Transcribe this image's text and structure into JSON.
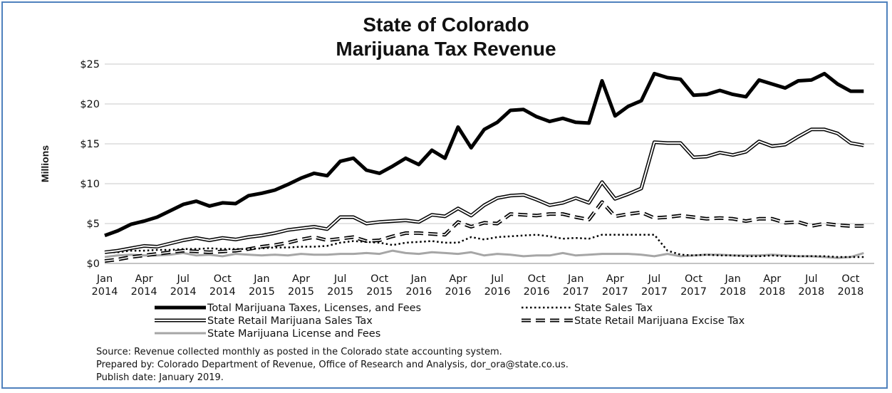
{
  "chart_data": {
    "type": "line",
    "title": "State of Colorado",
    "subtitle": "Marijuana Tax Revenue",
    "ylabel": "Millions",
    "xlabel": "",
    "ylim": [
      0,
      25
    ],
    "yticks": [
      0,
      5,
      10,
      15,
      20,
      25
    ],
    "ytick_labels": [
      "$0",
      "$5",
      "$10",
      "$15",
      "$20",
      "$25"
    ],
    "xticks": [
      {
        "month": 0,
        "line1": "Jan",
        "line2": "2014"
      },
      {
        "month": 3,
        "line1": "Apr",
        "line2": "2014"
      },
      {
        "month": 6,
        "line1": "Jul",
        "line2": "2014"
      },
      {
        "month": 9,
        "line1": "Oct",
        "line2": "2014"
      },
      {
        "month": 12,
        "line1": "Jan",
        "line2": "2015"
      },
      {
        "month": 15,
        "line1": "Apr",
        "line2": "2015"
      },
      {
        "month": 18,
        "line1": "Jul",
        "line2": "2015"
      },
      {
        "month": 21,
        "line1": "Oct",
        "line2": "2015"
      },
      {
        "month": 24,
        "line1": "Jan",
        "line2": "2016"
      },
      {
        "month": 27,
        "line1": "Apr",
        "line2": "2016"
      },
      {
        "month": 30,
        "line1": "Jul",
        "line2": "2016"
      },
      {
        "month": 33,
        "line1": "Oct",
        "line2": "2016"
      },
      {
        "month": 36,
        "line1": "Jan",
        "line2": "2017"
      },
      {
        "month": 39,
        "line1": "Apr",
        "line2": "2017"
      },
      {
        "month": 42,
        "line1": "Jul",
        "line2": "2017"
      },
      {
        "month": 45,
        "line1": "Oct",
        "line2": "2017"
      },
      {
        "month": 48,
        "line1": "Jan",
        "line2": "2018"
      },
      {
        "month": 51,
        "line1": "Apr",
        "line2": "2018"
      },
      {
        "month": 54,
        "line1": "Jul",
        "line2": "2018"
      },
      {
        "month": 57,
        "line1": "Oct",
        "line2": "2018"
      }
    ],
    "grid": true,
    "legend_position": "bottom",
    "series": [
      {
        "name": "Total Marijuana Taxes, Licenses, and Fees",
        "style": "thick",
        "color": "#000000",
        "values": [
          3.5,
          4.1,
          4.9,
          5.3,
          5.8,
          6.6,
          7.4,
          7.8,
          7.2,
          7.6,
          7.5,
          8.5,
          8.8,
          9.2,
          9.9,
          10.7,
          11.3,
          11.0,
          12.8,
          13.2,
          11.7,
          11.3,
          12.2,
          13.2,
          12.4,
          14.2,
          13.2,
          17.1,
          14.5,
          16.8,
          17.7,
          19.2,
          19.3,
          18.4,
          17.8,
          18.2,
          17.7,
          17.6,
          22.9,
          18.5,
          19.7,
          20.4,
          23.8,
          23.3,
          23.1,
          21.1,
          21.2,
          21.7,
          21.2,
          20.9,
          23.0,
          22.5,
          22.0,
          22.9,
          23.0,
          23.8,
          22.5,
          21.6,
          21.6
        ]
      },
      {
        "name": "State Sales Tax",
        "style": "dotted",
        "color": "#000000",
        "values": [
          1.4,
          1.4,
          1.6,
          1.6,
          1.7,
          1.7,
          1.8,
          1.8,
          1.9,
          1.8,
          1.8,
          1.8,
          1.9,
          2.0,
          2.0,
          2.1,
          2.1,
          2.2,
          2.6,
          2.8,
          2.7,
          2.6,
          2.3,
          2.6,
          2.7,
          2.8,
          2.6,
          2.6,
          3.3,
          3.0,
          3.3,
          3.4,
          3.5,
          3.6,
          3.4,
          3.1,
          3.2,
          3.1,
          3.6,
          3.6,
          3.6,
          3.6,
          3.6,
          1.6,
          1.1,
          1.0,
          1.1,
          1.0,
          1.0,
          0.9,
          0.9,
          1.0,
          0.9,
          0.9,
          0.9,
          0.9,
          0.8,
          0.8,
          0.8
        ]
      },
      {
        "name": "State Retail Marijuana Sales Tax",
        "style": "double",
        "color": "#000000",
        "values": [
          1.4,
          1.6,
          1.9,
          2.2,
          2.1,
          2.5,
          2.9,
          3.2,
          2.9,
          3.2,
          3.0,
          3.3,
          3.5,
          3.8,
          4.2,
          4.4,
          4.6,
          4.3,
          5.8,
          5.8,
          5.0,
          5.2,
          5.3,
          5.4,
          5.2,
          6.1,
          5.9,
          6.9,
          6.0,
          7.3,
          8.2,
          8.5,
          8.6,
          8.0,
          7.3,
          7.6,
          8.2,
          7.6,
          10.2,
          8.1,
          8.7,
          9.4,
          15.2,
          15.1,
          15.1,
          13.3,
          13.4,
          13.9,
          13.6,
          14.0,
          15.3,
          14.7,
          14.9,
          15.9,
          16.8,
          16.8,
          16.3,
          15.1,
          14.8
        ]
      },
      {
        "name": "State Retail Marijuana Excise Tax",
        "style": "dashed",
        "color": "#000000",
        "values": [
          0.3,
          0.5,
          0.8,
          1.0,
          1.2,
          1.4,
          1.6,
          1.5,
          1.4,
          1.5,
          1.6,
          1.8,
          2.1,
          2.3,
          2.6,
          3.0,
          3.3,
          2.9,
          3.1,
          3.3,
          2.8,
          2.9,
          3.4,
          3.8,
          3.8,
          3.7,
          3.6,
          5.2,
          4.6,
          5.1,
          5.0,
          6.2,
          6.1,
          6.0,
          6.2,
          6.2,
          5.8,
          5.5,
          7.7,
          5.9,
          6.2,
          6.4,
          5.7,
          5.8,
          6.0,
          5.8,
          5.6,
          5.7,
          5.6,
          5.3,
          5.6,
          5.6,
          5.1,
          5.2,
          4.7,
          5.0,
          4.8,
          4.7,
          4.7
        ]
      },
      {
        "name": "State Marijuana License and Fees",
        "style": "gray",
        "color": "#a6a6a6",
        "values": [
          0.8,
          1.0,
          1.1,
          1.0,
          1.0,
          1.1,
          1.3,
          1.0,
          1.1,
          0.9,
          1.2,
          1.1,
          1.0,
          1.1,
          1.0,
          1.2,
          1.1,
          1.1,
          1.2,
          1.2,
          1.3,
          1.2,
          1.6,
          1.3,
          1.2,
          1.4,
          1.3,
          1.2,
          1.4,
          1.0,
          1.2,
          1.1,
          0.9,
          1.0,
          1.0,
          1.3,
          1.0,
          1.1,
          1.2,
          1.2,
          1.2,
          1.1,
          0.9,
          1.2,
          0.9,
          1.0,
          1.1,
          1.1,
          1.0,
          1.0,
          1.0,
          1.1,
          1.0,
          0.9,
          0.9,
          0.8,
          0.7,
          0.8,
          1.3
        ]
      }
    ],
    "notes": [
      "Source: Revenue collected monthly as posted in the Colorado state accounting system.",
      "Prepared by: Colorado Department of Revenue, Office of Research and Analysis, dor_ora@state.co.us.",
      "Publish date: January 2019."
    ]
  }
}
